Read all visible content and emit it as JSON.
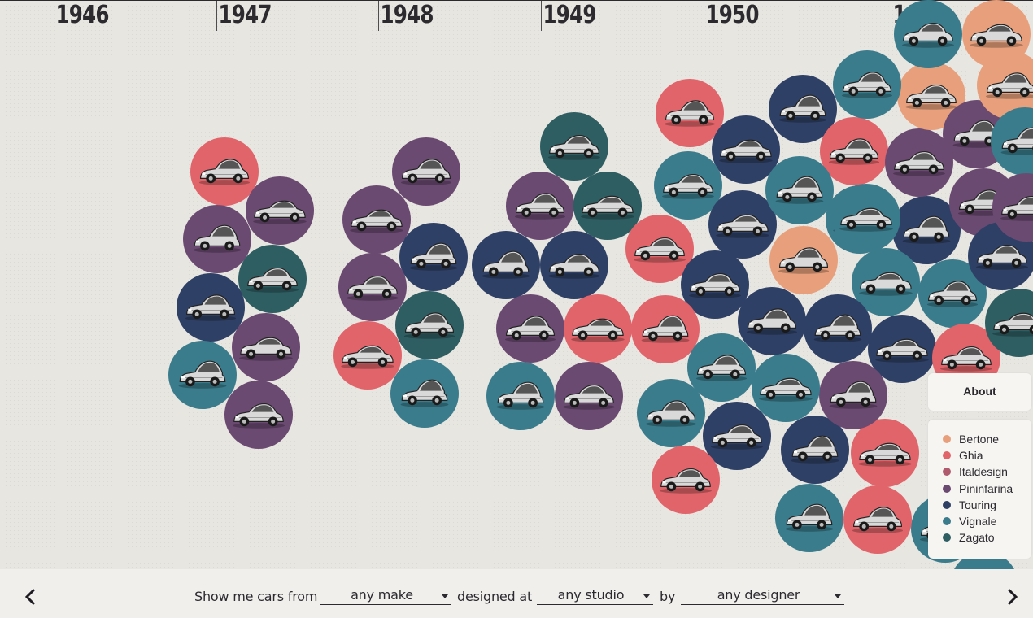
{
  "timeline": {
    "years": [
      "1946",
      "1947",
      "1948",
      "1949",
      "1950",
      "195"
    ]
  },
  "studios": {
    "Bertone": "#e8a07c",
    "Ghia": "#e0646a",
    "Italdesign": "#b05a6e",
    "Pininfarina": "#6b4a72",
    "Touring": "#2f4066",
    "Vignale": "#3a7c8c",
    "Zagato": "#2e5e62"
  },
  "legend": {
    "items": [
      {
        "label": "Bertone",
        "color": "#e8a07c"
      },
      {
        "label": "Ghia",
        "color": "#e0646a"
      },
      {
        "label": "Italdesign",
        "color": "#b05a6e"
      },
      {
        "label": "Pininfarina",
        "color": "#6b4a72"
      },
      {
        "label": "Touring",
        "color": "#2f4066"
      },
      {
        "label": "Vignale",
        "color": "#3a7c8c"
      },
      {
        "label": "Zagato",
        "color": "#2e5e62"
      }
    ]
  },
  "about": {
    "label": "About"
  },
  "filters": {
    "prefix": "Show me cars from",
    "make_value": "any make",
    "designed_at": "designed at",
    "studio_value": "any studio",
    "by": "by",
    "designer_value": "any designer"
  },
  "cars": [
    {
      "studio": "Ghia"
    },
    {
      "studio": "Pininfarina"
    },
    {
      "studio": "Pininfarina"
    },
    {
      "studio": "Zagato"
    },
    {
      "studio": "Touring"
    },
    {
      "studio": "Pininfarina"
    },
    {
      "studio": "Vignale"
    },
    {
      "studio": "Pininfarina"
    },
    {
      "studio": "Pininfarina"
    },
    {
      "studio": "Pininfarina"
    },
    {
      "studio": "Touring"
    },
    {
      "studio": "Pininfarina"
    },
    {
      "studio": "Zagato"
    },
    {
      "studio": "Ghia"
    },
    {
      "studio": "Vignale"
    },
    {
      "studio": "Zagato"
    },
    {
      "studio": "Pininfarina"
    },
    {
      "studio": "Zagato"
    },
    {
      "studio": "Touring"
    },
    {
      "studio": "Touring"
    },
    {
      "studio": "Pininfarina"
    },
    {
      "studio": "Ghia"
    },
    {
      "studio": "Vignale"
    },
    {
      "studio": "Pininfarina"
    },
    {
      "studio": "Ghia"
    },
    {
      "studio": "Touring"
    },
    {
      "studio": "Touring"
    },
    {
      "studio": "Vignale"
    },
    {
      "studio": "Ghia"
    },
    {
      "studio": "Touring"
    },
    {
      "studio": "Vignale"
    },
    {
      "studio": "Ghia"
    },
    {
      "studio": "Bertone"
    },
    {
      "studio": "Vignale"
    },
    {
      "studio": "Touring"
    },
    {
      "studio": "Touring"
    },
    {
      "studio": "Touring"
    },
    {
      "studio": "Vignale"
    },
    {
      "studio": "Touring"
    },
    {
      "studio": "Pininfarina"
    },
    {
      "studio": "Vignale"
    },
    {
      "studio": "Touring"
    },
    {
      "studio": "Ghia"
    },
    {
      "studio": "Ghia"
    },
    {
      "studio": "Vignale"
    },
    {
      "studio": "Ghia"
    },
    {
      "studio": "Touring"
    },
    {
      "studio": "Bertone"
    },
    {
      "studio": "Vignale"
    },
    {
      "studio": "Bertone"
    },
    {
      "studio": "Pininfarina"
    },
    {
      "studio": "Vignale"
    },
    {
      "studio": "Pininfarina"
    },
    {
      "studio": "Vignale"
    },
    {
      "studio": "Pininfarina"
    },
    {
      "studio": "Touring"
    },
    {
      "studio": "Vignale"
    },
    {
      "studio": "Vignale"
    },
    {
      "studio": "Vignale"
    },
    {
      "studio": "Touring"
    },
    {
      "studio": "Bertone"
    },
    {
      "studio": "Zagato"
    },
    {
      "studio": "Vignale"
    },
    {
      "studio": "Pininfarina"
    },
    {
      "studio": "Vignale"
    },
    {
      "studio": "Vignale"
    }
  ]
}
